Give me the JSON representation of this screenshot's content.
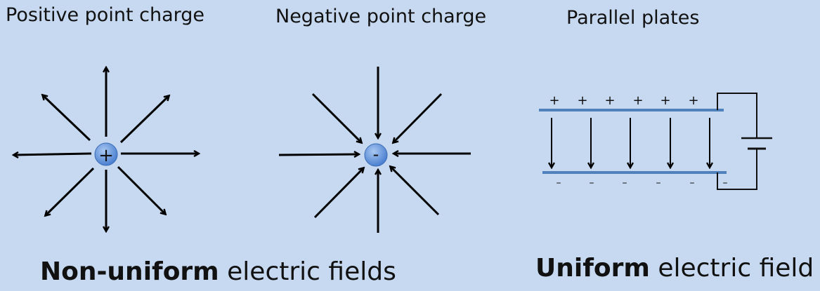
{
  "labels": {
    "positive": "Positive point charge",
    "negative": "Negative point charge",
    "plates": "Parallel plates"
  },
  "charges": {
    "positive_symbol": "+",
    "negative_symbol": "-"
  },
  "plates": {
    "plus_signs": [
      "+",
      "+",
      "+",
      "+",
      "+",
      "+"
    ],
    "minus_signs": [
      "–",
      "–",
      "–",
      "–",
      "–",
      "–"
    ]
  },
  "captions": {
    "left_bold": "Non-uniform",
    "left_rest": " electric fields",
    "right_bold": "Uniform",
    "right_rest": " electric field"
  },
  "colors": {
    "background": "#c6d9f0",
    "charge_fill": "#5b8fd8",
    "plate": "#4f81bd",
    "arrow": "#000000"
  }
}
